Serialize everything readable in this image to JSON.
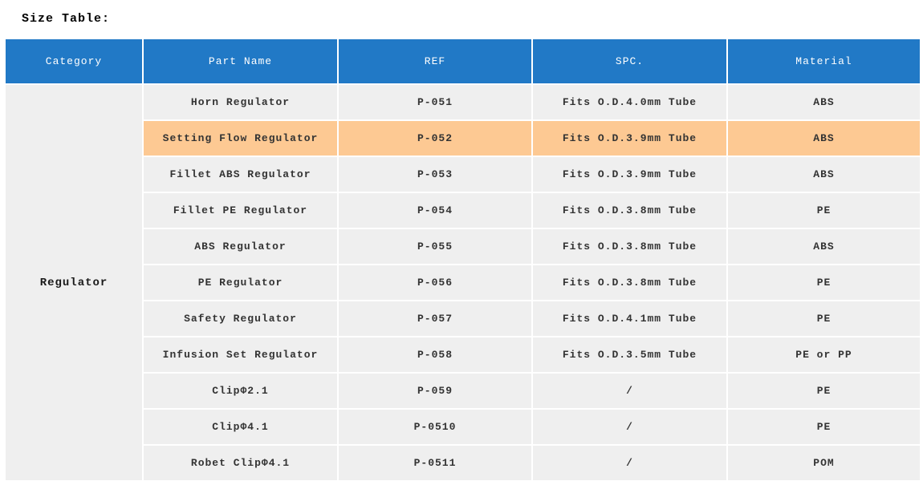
{
  "page": {
    "title": "Size Table:"
  },
  "table": {
    "headers": [
      "Category",
      "Part Name",
      "REF",
      "SPC.",
      "Material"
    ],
    "category": "Regulator",
    "colors": {
      "header_bg": "#2179c6",
      "header_text": "#ffffff",
      "row_bg": "#efefef",
      "highlight_bg": "#fdc993",
      "body_text": "#333333"
    },
    "rows": [
      {
        "part_name": "Horn Regulator",
        "ref": "P-051",
        "spc": "Fits O.D.4.0mm Tube",
        "material": "ABS",
        "highlighted": false
      },
      {
        "part_name": "Setting Flow Regulator",
        "ref": "P-052",
        "spc": "Fits O.D.3.9mm Tube",
        "material": "ABS",
        "highlighted": true
      },
      {
        "part_name": "Fillet ABS Regulator",
        "ref": "P-053",
        "spc": "Fits O.D.3.9mm Tube",
        "material": "ABS",
        "highlighted": false
      },
      {
        "part_name": "Fillet PE Regulator",
        "ref": "P-054",
        "spc": "Fits O.D.3.8mm Tube",
        "material": "PE",
        "highlighted": false
      },
      {
        "part_name": "ABS Regulator",
        "ref": "P-055",
        "spc": "Fits O.D.3.8mm Tube",
        "material": "ABS",
        "highlighted": false
      },
      {
        "part_name": "PE Regulator",
        "ref": "P-056",
        "spc": "Fits O.D.3.8mm Tube",
        "material": "PE",
        "highlighted": false
      },
      {
        "part_name": "Safety Regulator",
        "ref": "P-057",
        "spc": "Fits O.D.4.1mm Tube",
        "material": "PE",
        "highlighted": false
      },
      {
        "part_name": "Infusion Set Regulator",
        "ref": "P-058",
        "spc": "Fits O.D.3.5mm Tube",
        "material": "PE or PP",
        "highlighted": false
      },
      {
        "part_name": "ClipΦ2.1",
        "ref": "P-059",
        "spc": "/",
        "material": "PE",
        "highlighted": false
      },
      {
        "part_name": "ClipΦ4.1",
        "ref": "P-0510",
        "spc": "/",
        "material": "PE",
        "highlighted": false
      },
      {
        "part_name": "Robet ClipΦ4.1",
        "ref": "P-0511",
        "spc": "/",
        "material": "POM",
        "highlighted": false
      }
    ]
  }
}
